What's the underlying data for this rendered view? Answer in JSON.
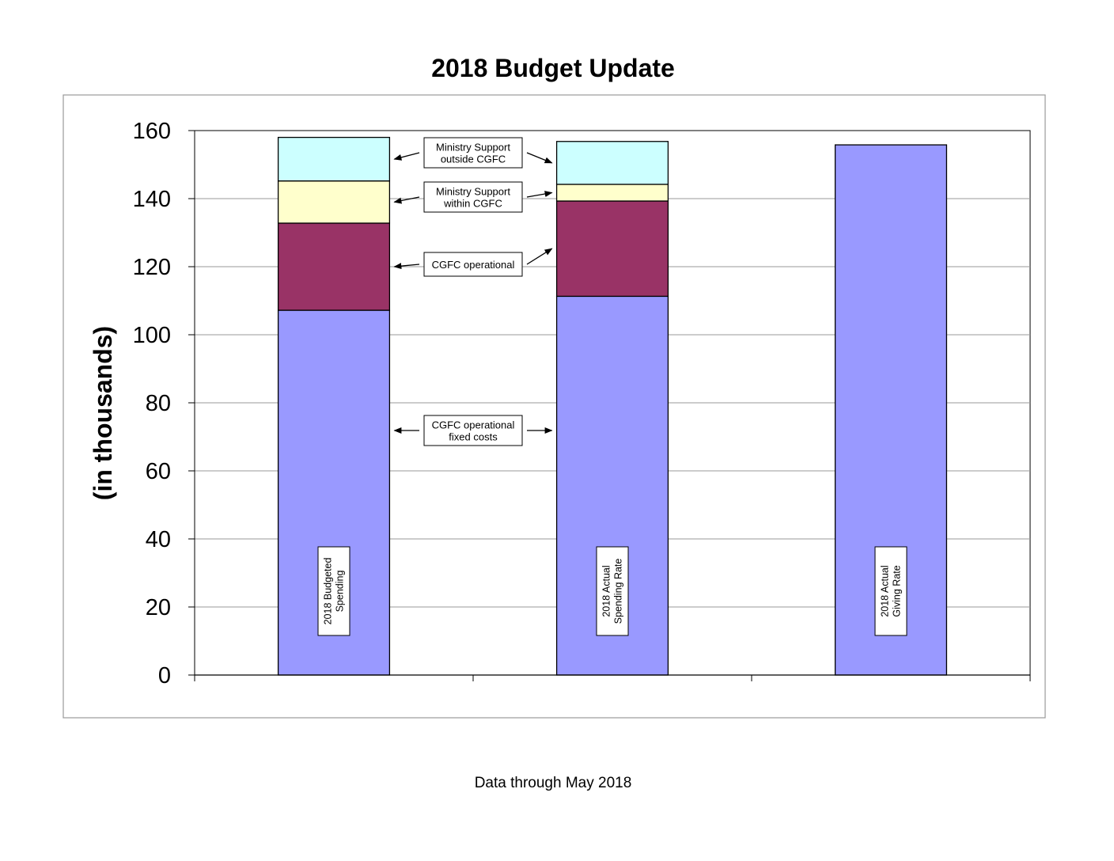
{
  "title": "2018 Budget Update",
  "footer": "Data through May 2018",
  "chart_data": {
    "type": "bar",
    "stacked": true,
    "title": "2018 Budget Update",
    "ylabel": "(in thousands)",
    "ylim": [
      0,
      160
    ],
    "yticks": [
      0,
      20,
      40,
      60,
      80,
      100,
      120,
      140,
      160
    ],
    "grid": true,
    "legend": "none",
    "categories": [
      "2018  Budgeted Spending",
      "2018 Actual Spending Rate",
      "2018 Actual Giving Rate"
    ],
    "category_label_lines": [
      [
        "2018  Budgeted",
        "Spending"
      ],
      [
        "2018 Actual",
        "Spending Rate"
      ],
      [
        "2018 Actual",
        "Giving Rate"
      ]
    ],
    "series": [
      {
        "key": "fixed",
        "color": "#9999ff",
        "values": [
          107.2,
          111.3,
          155.8
        ]
      },
      {
        "key": "operational",
        "color": "#993366",
        "values": [
          25.6,
          28.0,
          0
        ]
      },
      {
        "key": "within",
        "color": "#ffffcc",
        "values": [
          12.4,
          4.9,
          0
        ]
      },
      {
        "key": "outside",
        "color": "#ccffff",
        "values": [
          12.8,
          12.6,
          0
        ]
      }
    ],
    "annotations": [
      {
        "lines": [
          "Ministry Support",
          "outside CGFC"
        ],
        "series": "outside"
      },
      {
        "lines": [
          "Ministry Support",
          "within  CGFC"
        ],
        "series": "within"
      },
      {
        "lines": [
          "CGFC operational"
        ],
        "series": "operational"
      },
      {
        "lines": [
          "CGFC operational",
          "fixed costs"
        ],
        "series": "fixed"
      }
    ]
  }
}
